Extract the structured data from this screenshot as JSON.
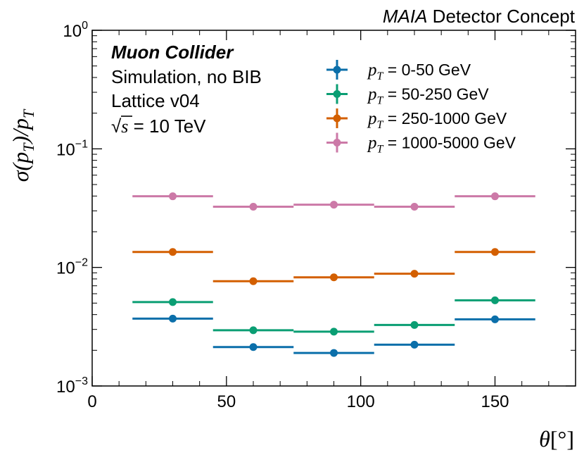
{
  "chart_data": {
    "type": "scatter",
    "title": "",
    "header": {
      "italic": "MAIA",
      "rest": " Detector Concept"
    },
    "annotations": {
      "line1": "Muon Collider",
      "line2": "Simulation, no BIB",
      "line3": "Lattice v04",
      "line4_sqrt": "√",
      "line4_s": "s",
      "line4_rest": " = 10 TeV"
    },
    "xlabel": "θ[°]",
    "ylabel": "σ(pT)/pT",
    "xlim": [
      0,
      180
    ],
    "ylim": [
      0.001,
      1
    ],
    "yscale": "log",
    "xticks": [
      0,
      50,
      100,
      150
    ],
    "xtick_labels": [
      "0",
      "50",
      "100",
      "150"
    ],
    "yticks_major": [
      {
        "value": 1,
        "base": "10",
        "exp": "0"
      },
      {
        "value": 0.1,
        "base": "10",
        "exp": "−1"
      },
      {
        "value": 0.01,
        "base": "10",
        "exp": "−2"
      },
      {
        "value": 0.001,
        "base": "10",
        "exp": "−3"
      }
    ],
    "x_centers": [
      30,
      60,
      90,
      120,
      150
    ],
    "x_halfwidths": [
      15,
      15,
      15,
      15,
      15
    ],
    "legend_position": "top-right",
    "series": [
      {
        "name": "pT = 0-50 GeV",
        "label_p": "p",
        "label_sub": "T",
        "label_rest": " = 0-50 GeV",
        "color": "#0b6faa",
        "values": [
          0.0037,
          0.00213,
          0.0019,
          0.00223,
          0.00365
        ]
      },
      {
        "name": "pT = 50-250 GeV",
        "label_p": "p",
        "label_sub": "T",
        "label_rest": " = 50-250 GeV",
        "color": "#0a9e73",
        "values": [
          0.0051,
          0.00295,
          0.00287,
          0.00327,
          0.00528
        ]
      },
      {
        "name": "pT = 250-1000 GeV",
        "label_p": "p",
        "label_sub": "T",
        "label_rest": " = 250-1000 GeV",
        "color": "#d35f00",
        "values": [
          0.0135,
          0.00765,
          0.00825,
          0.00885,
          0.0135
        ]
      },
      {
        "name": "pT = 1000-5000 GeV",
        "label_p": "p",
        "label_sub": "T",
        "label_rest": " = 1000-5000 GeV",
        "color": "#cc79a7",
        "values": [
          0.0398,
          0.0325,
          0.0338,
          0.0325,
          0.0398
        ]
      }
    ]
  }
}
